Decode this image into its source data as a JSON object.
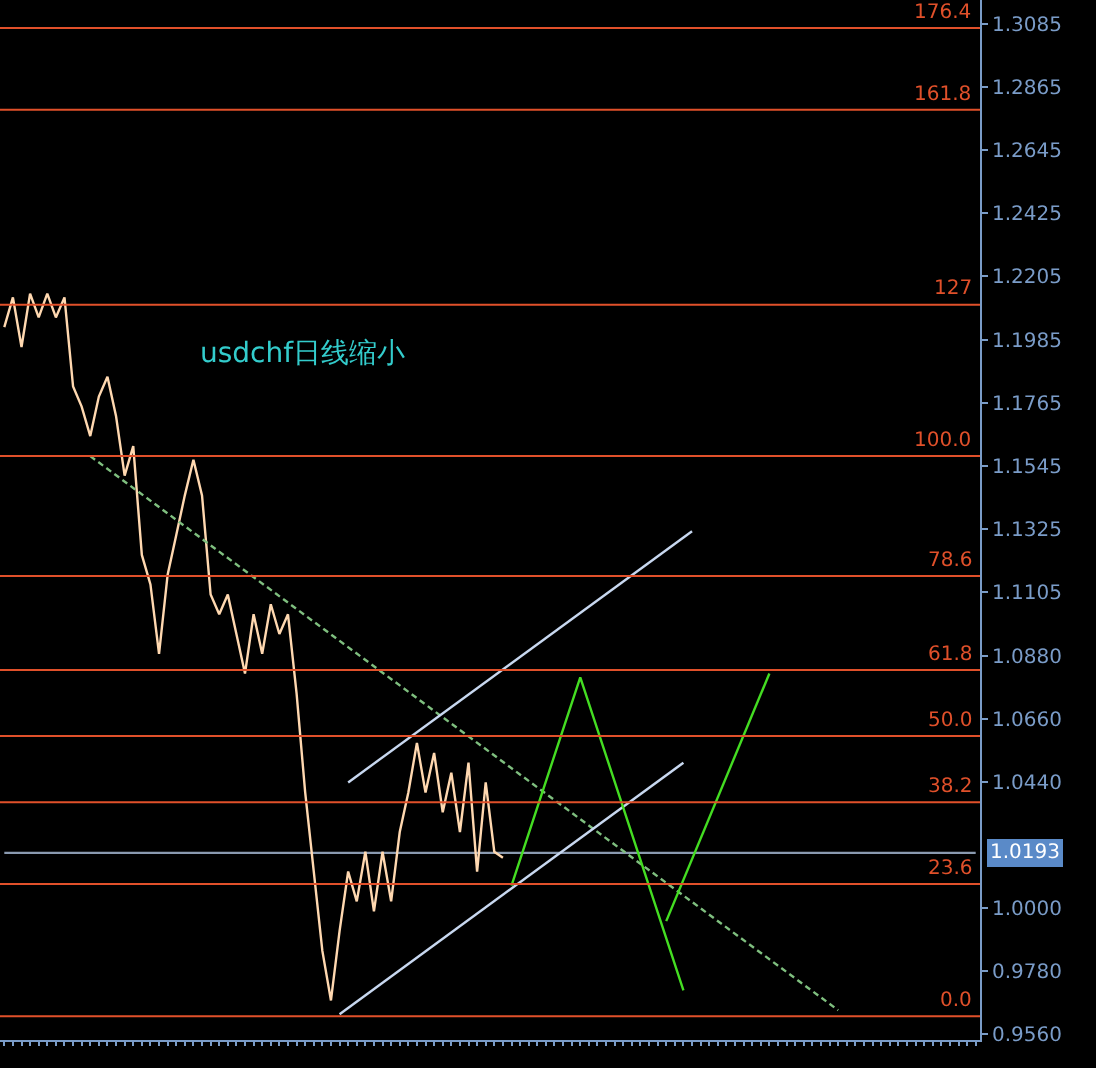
{
  "chart_data": {
    "type": "line",
    "annotations": [
      "usdchf日线缩小"
    ],
    "categories": [
      null,
      null,
      null,
      null,
      null,
      null,
      null,
      null,
      null,
      null,
      null,
      null,
      null,
      null,
      null,
      null,
      null,
      null,
      null,
      null,
      null,
      null,
      null,
      null,
      null,
      null,
      null,
      null,
      null,
      null,
      null,
      null,
      null,
      null,
      null,
      null,
      null,
      null,
      null,
      null,
      null,
      null,
      null,
      null,
      null,
      null,
      null,
      null,
      null,
      null,
      null,
      null,
      null,
      null,
      null,
      null,
      null,
      null,
      null,
      null,
      null,
      null,
      null,
      null,
      null,
      null,
      null,
      null,
      null,
      null,
      null,
      null,
      null,
      null,
      null,
      null,
      null,
      null,
      null,
      null,
      null,
      null,
      null,
      null,
      null,
      null,
      null,
      null,
      null,
      null,
      null,
      null,
      null,
      null,
      null,
      null,
      null,
      null,
      null,
      null,
      null,
      null,
      null,
      null,
      null,
      null,
      null,
      null,
      null,
      null,
      null,
      null,
      null,
      null
    ],
    "series": [
      {
        "name": "1.0193",
        "color": "#8a9ab0",
        "values": [
          1.0193,
          1.0193,
          1.0193,
          1.0193,
          1.0193,
          1.0193,
          1.0193,
          1.0193,
          1.0193,
          1.0193,
          1.0193,
          1.0193,
          1.0193,
          1.0193,
          1.0193,
          1.0193,
          1.0193,
          1.0193,
          1.0193,
          1.0193,
          1.0193,
          1.0193,
          1.0193,
          1.0193,
          1.0193,
          1.0193,
          1.0193,
          1.0193,
          1.0193,
          1.0193,
          1.0193,
          1.0193,
          1.0193,
          1.0193,
          1.0193,
          1.0193,
          1.0193,
          1.0193,
          1.0193,
          1.0193,
          1.0193,
          1.0193,
          1.0193,
          1.0193,
          1.0193,
          1.0193,
          1.0193,
          1.0193,
          1.0193,
          1.0193,
          1.0193,
          1.0193,
          1.0193,
          1.0193,
          1.0193,
          1.0193,
          1.0193,
          1.0193,
          1.0193,
          1.0193,
          1.0193,
          1.0193,
          1.0193,
          1.0193,
          1.0193,
          1.0193,
          1.0193,
          1.0193,
          1.0193,
          1.0193,
          1.0193,
          1.0193,
          1.0193,
          1.0193,
          1.0193,
          1.0193,
          1.0193,
          1.0193,
          1.0193,
          1.0193,
          1.0193,
          1.0193,
          1.0193,
          1.0193,
          1.0193,
          1.0193,
          1.0193,
          1.0193,
          1.0193,
          1.0193,
          1.0193,
          1.0193,
          1.0193,
          1.0193,
          1.0193,
          1.0193,
          1.0193,
          1.0193,
          1.0193,
          1.0193,
          1.0193,
          1.0193,
          1.0193,
          1.0193,
          1.0193,
          1.0193,
          1.0193,
          1.0193,
          1.0193,
          1.0193,
          1.0193,
          1.0193,
          1.0193,
          1.0193
        ]
      },
      {
        "color": "#ffd8b0",
        "values": [
          1.2028,
          1.2132,
          1.1959,
          1.2145,
          1.2062,
          1.2145,
          1.2062,
          1.2132,
          1.1821,
          1.1751,
          1.1648,
          1.1786,
          1.1855,
          1.1717,
          1.151,
          1.1613,
          1.1233,
          1.113,
          1.0888,
          1.1164,
          1.1302,
          1.1441,
          1.1565,
          1.1441,
          1.1095,
          1.1026,
          1.1095,
          1.0957,
          1.0819,
          1.1026,
          1.0888,
          1.1061,
          1.0957,
          1.1026,
          1.075,
          1.0404,
          1.0128,
          0.9851,
          0.9678,
          0.992,
          1.0128,
          1.0024,
          1.0197,
          0.9989,
          1.0197,
          1.0024,
          1.0266,
          1.0404,
          1.0577,
          1.0404,
          1.0542,
          1.0335,
          1.0473,
          1.0266,
          1.0508,
          1.0128,
          1.0439,
          1.0197,
          1.0176,
          null,
          null,
          null,
          null,
          null,
          null,
          null,
          null,
          null,
          null,
          null,
          null,
          null,
          null,
          null,
          null,
          null,
          null,
          null,
          null,
          null,
          null,
          null,
          null,
          null,
          null,
          null,
          null,
          null,
          null,
          null,
          null,
          null,
          null,
          null,
          null,
          null,
          null,
          null,
          null,
          null,
          null,
          null,
          null,
          null,
          null,
          null,
          null,
          null,
          null,
          null,
          null,
          null,
          null,
          null
        ]
      },
      {
        "color": "#7fbf7f",
        "line_style": "dashed",
        "values": [
          null,
          null,
          null,
          null,
          null,
          null,
          null,
          null,
          null,
          null,
          1.1578,
          null,
          null,
          null,
          null,
          null,
          null,
          null,
          null,
          null,
          null,
          null,
          null,
          null,
          null,
          null,
          null,
          null,
          null,
          null,
          null,
          null,
          null,
          null,
          null,
          null,
          null,
          null,
          null,
          null,
          null,
          null,
          null,
          null,
          null,
          null,
          null,
          null,
          null,
          null,
          null,
          null,
          null,
          null,
          null,
          null,
          null,
          null,
          null,
          null,
          null,
          null,
          null,
          null,
          null,
          null,
          null,
          null,
          null,
          null,
          null,
          null,
          null,
          null,
          null,
          null,
          null,
          null,
          null,
          null,
          null,
          null,
          null,
          null,
          null,
          null,
          null,
          null,
          null,
          null,
          null,
          null,
          null,
          null,
          null,
          null,
          null,
          0.9644,
          null,
          null,
          null,
          null,
          null,
          null,
          null,
          null,
          null,
          null,
          null,
          null,
          null,
          null,
          null,
          null
        ]
      },
      {
        "color": "#c8d8f0",
        "values": [
          null,
          null,
          null,
          null,
          null,
          null,
          null,
          null,
          null,
          null,
          null,
          null,
          null,
          null,
          null,
          null,
          null,
          null,
          null,
          null,
          null,
          null,
          null,
          null,
          null,
          null,
          null,
          null,
          null,
          null,
          null,
          null,
          null,
          null,
          null,
          null,
          null,
          null,
          null,
          null,
          1.0439,
          null,
          null,
          null,
          null,
          null,
          null,
          null,
          null,
          null,
          null,
          null,
          null,
          null,
          null,
          null,
          null,
          null,
          null,
          null,
          null,
          null,
          null,
          null,
          null,
          null,
          null,
          null,
          null,
          null,
          null,
          null,
          null,
          null,
          null,
          null,
          null,
          null,
          null,
          null,
          1.1316,
          null,
          null,
          null,
          null,
          null,
          null,
          null,
          null,
          null,
          null,
          null,
          null,
          null,
          null,
          null,
          null,
          null,
          null,
          null,
          null,
          null,
          null,
          null,
          null,
          null,
          null,
          null,
          null,
          null,
          null,
          null,
          null,
          null
        ]
      },
      {
        "color": "#c8d8f0",
        "values": [
          null,
          null,
          null,
          null,
          null,
          null,
          null,
          null,
          null,
          null,
          null,
          null,
          null,
          null,
          null,
          null,
          null,
          null,
          null,
          null,
          null,
          null,
          null,
          null,
          null,
          null,
          null,
          null,
          null,
          null,
          null,
          null,
          null,
          null,
          null,
          null,
          null,
          null,
          null,
          0.963,
          null,
          null,
          null,
          null,
          null,
          null,
          null,
          null,
          null,
          null,
          null,
          null,
          null,
          null,
          null,
          null,
          null,
          null,
          null,
          null,
          null,
          null,
          null,
          null,
          null,
          null,
          null,
          null,
          null,
          null,
          null,
          null,
          null,
          null,
          null,
          null,
          null,
          null,
          null,
          1.0508,
          null,
          null,
          null,
          null,
          null,
          null,
          null,
          null,
          null,
          null,
          null,
          null,
          null,
          null,
          null,
          null,
          null,
          null,
          null,
          null,
          null,
          null,
          null,
          null,
          null,
          null,
          null,
          null,
          null,
          null,
          null,
          null,
          null,
          null
        ]
      },
      {
        "color": "#44dd22",
        "values": [
          null,
          null,
          null,
          null,
          null,
          null,
          null,
          null,
          null,
          null,
          null,
          null,
          null,
          null,
          null,
          null,
          null,
          null,
          null,
          null,
          null,
          null,
          null,
          null,
          null,
          null,
          null,
          null,
          null,
          null,
          null,
          null,
          null,
          null,
          null,
          null,
          null,
          null,
          null,
          null,
          null,
          null,
          null,
          null,
          null,
          null,
          null,
          null,
          null,
          null,
          null,
          null,
          null,
          null,
          null,
          null,
          null,
          null,
          null,
          1.0079,
          null,
          null,
          null,
          null,
          null,
          null,
          null,
          1.0806,
          null,
          null,
          null,
          null,
          null,
          null,
          null,
          null,
          null,
          null,
          null,
          0.9713,
          null,
          null,
          null,
          null,
          null,
          null,
          null,
          null,
          null,
          null,
          null,
          null,
          null,
          null,
          null,
          null,
          null,
          null,
          null,
          null,
          null,
          null,
          null,
          null,
          null,
          null,
          null,
          null,
          null,
          null,
          null,
          null,
          null,
          null
        ]
      },
      {
        "color": "#44dd22",
        "values": [
          null,
          null,
          null,
          null,
          null,
          null,
          null,
          null,
          null,
          null,
          null,
          null,
          null,
          null,
          null,
          null,
          null,
          null,
          null,
          null,
          null,
          null,
          null,
          null,
          null,
          null,
          null,
          null,
          null,
          null,
          null,
          null,
          null,
          null,
          null,
          null,
          null,
          null,
          null,
          null,
          null,
          null,
          null,
          null,
          null,
          null,
          null,
          null,
          null,
          null,
          null,
          null,
          null,
          null,
          null,
          null,
          null,
          null,
          null,
          null,
          null,
          null,
          null,
          null,
          null,
          null,
          null,
          null,
          null,
          null,
          null,
          null,
          null,
          null,
          null,
          null,
          null,
          0.9955,
          null,
          null,
          null,
          null,
          null,
          null,
          null,
          null,
          null,
          null,
          null,
          1.0819,
          null,
          null,
          null,
          null,
          null,
          null,
          null,
          null,
          null,
          null,
          null,
          null,
          null,
          null,
          null,
          null,
          null,
          null,
          null,
          null,
          null,
          null,
          null,
          null
        ]
      }
    ],
    "ylim": [
      0.954,
      1.317
    ],
    "yticks": [
      {
        "value": 0.956,
        "label": "0.9560"
      },
      {
        "value": 0.978,
        "label": "0.9780"
      },
      {
        "value": 1,
        "label": "1.0000"
      },
      {
        "value": 1.044,
        "label": "1.0440"
      },
      {
        "value": 1.066,
        "label": "1.0660"
      },
      {
        "value": 1.088,
        "label": "1.0880"
      },
      {
        "value": 1.1105,
        "label": "1.1105"
      },
      {
        "value": 1.1325,
        "label": "1.1325"
      },
      {
        "value": 1.1545,
        "label": "1.1545"
      },
      {
        "value": 1.1765,
        "label": "1.1765"
      },
      {
        "value": 1.1985,
        "label": "1.1985"
      },
      {
        "value": 1.2205,
        "label": "1.2205"
      },
      {
        "value": 1.2425,
        "label": "1.2425"
      },
      {
        "value": 1.2645,
        "label": "1.2645"
      },
      {
        "value": 1.2865,
        "label": "1.2865"
      },
      {
        "value": 1.3085,
        "label": "1.3085"
      }
    ],
    "y2lim": [
      -4.25,
      181.4
    ],
    "tick_labels": "y",
    "grid": false,
    "marker": "none",
    "ref_lines": [
      {
        "axis": "y2",
        "value": 176.4,
        "label": "176.4",
        "color": "#e0502a"
      },
      {
        "axis": "y2",
        "value": 161.8,
        "label": "161.8",
        "color": "#e0502a"
      },
      {
        "axis": "y2",
        "value": 127,
        "label": "127",
        "color": "#e0502a"
      },
      {
        "axis": "y2",
        "value": 100,
        "label": "100.0",
        "color": "#e0502a"
      },
      {
        "axis": "y2",
        "value": 78.6,
        "label": "78.6",
        "color": "#e0502a"
      },
      {
        "axis": "y2",
        "value": 61.8,
        "label": "61.8",
        "color": "#e0502a"
      },
      {
        "axis": "y2",
        "value": 50,
        "label": "50.0",
        "color": "#e0502a"
      },
      {
        "axis": "y2",
        "value": 38.2,
        "label": "38.2",
        "color": "#e0502a"
      },
      {
        "axis": "y2",
        "value": 23.6,
        "label": "23.6",
        "color": "#e0502a"
      },
      {
        "axis": "y2",
        "value": 0,
        "label": "0.0",
        "color": "#e0502a"
      }
    ]
  }
}
